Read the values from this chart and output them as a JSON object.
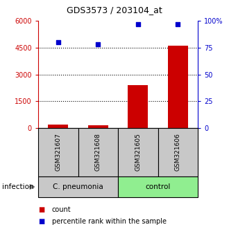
{
  "title": "GDS3573 / 203104_at",
  "samples": [
    "GSM321607",
    "GSM321608",
    "GSM321605",
    "GSM321606"
  ],
  "counts": [
    200,
    150,
    2400,
    4600
  ],
  "percentiles": [
    80,
    78,
    97,
    97
  ],
  "groups": [
    {
      "label": "C. pneumonia",
      "color": "#c8c8c8",
      "indices": [
        0,
        1
      ]
    },
    {
      "label": "control",
      "color": "#90ee90",
      "indices": [
        2,
        3
      ]
    }
  ],
  "group_infection_label": "infection",
  "left_ylim": [
    0,
    6000
  ],
  "left_yticks": [
    0,
    1500,
    3000,
    4500,
    6000
  ],
  "right_ylim": [
    0,
    100
  ],
  "right_yticks": [
    0,
    25,
    50,
    75,
    100
  ],
  "right_yticklabels": [
    "0",
    "25",
    "50",
    "75",
    "100%"
  ],
  "bar_color": "#cc0000",
  "scatter_color": "#0000cc",
  "bar_width": 0.5,
  "left_axis_color": "#cc0000",
  "right_axis_color": "#0000cc",
  "legend_items": [
    {
      "color": "#cc0000",
      "label": "count"
    },
    {
      "color": "#0000cc",
      "label": "percentile rank within the sample"
    }
  ],
  "background_color": "#ffffff",
  "sample_box_color": "#c8c8c8",
  "grid_dotted_vals": [
    1500,
    3000,
    4500
  ]
}
